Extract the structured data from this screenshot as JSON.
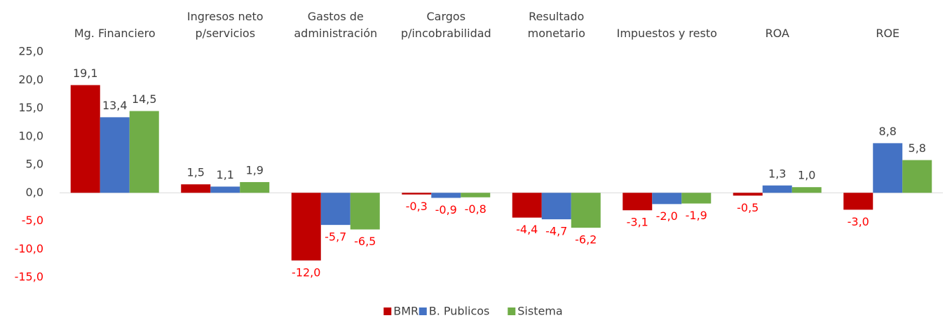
{
  "chart_data": {
    "type": "bar",
    "categories": [
      "Mg. Financiero",
      "Ingresos neto\np/servicios",
      "Gastos de\nadministración",
      "Cargos\np/incobrabilidad",
      "Resultado\nmonetario",
      "Impuestos y resto",
      "ROA",
      "ROE"
    ],
    "series": [
      {
        "name": "BMR",
        "color": "#c00000",
        "values": [
          19.1,
          1.5,
          -12.0,
          -0.3,
          -4.4,
          -3.1,
          -0.5,
          -3.0
        ],
        "value_labels": [
          "19,1",
          "1,5",
          "-12,0",
          "-0,3",
          "-4,4",
          "-3,1",
          "-0,5",
          "-3,0"
        ]
      },
      {
        "name": "B. Publicos",
        "color": "#4472c4",
        "values": [
          13.4,
          1.1,
          -5.7,
          -0.9,
          -4.7,
          -2.0,
          1.3,
          8.8
        ],
        "value_labels": [
          "13,4",
          "1,1",
          "-5,7",
          "-0,9",
          "-4,7",
          "-2,0",
          "1,3",
          "8,8"
        ]
      },
      {
        "name": "Sistema",
        "color": "#70ad47",
        "values": [
          14.5,
          1.9,
          -6.5,
          -0.8,
          -6.2,
          -1.9,
          1.0,
          5.8
        ],
        "value_labels": [
          "14,5",
          "1,9",
          "-6,5",
          "-0,8",
          "-6,2",
          "-1,9",
          "1,0",
          "5,8"
        ]
      }
    ],
    "ylim": [
      -15,
      25
    ],
    "yticks": [
      {
        "value": -15,
        "label": "-15,0"
      },
      {
        "value": -10,
        "label": "-10,0"
      },
      {
        "value": -5,
        "label": "-5,0"
      },
      {
        "value": 0,
        "label": "0,0"
      },
      {
        "value": 5,
        "label": "5,0"
      },
      {
        "value": 10,
        "label": "10,0"
      },
      {
        "value": 15,
        "label": "15,0"
      },
      {
        "value": 20,
        "label": "20,0"
      },
      {
        "value": 25,
        "label": "25,0"
      }
    ],
    "grid": false,
    "legend": "bottom"
  }
}
